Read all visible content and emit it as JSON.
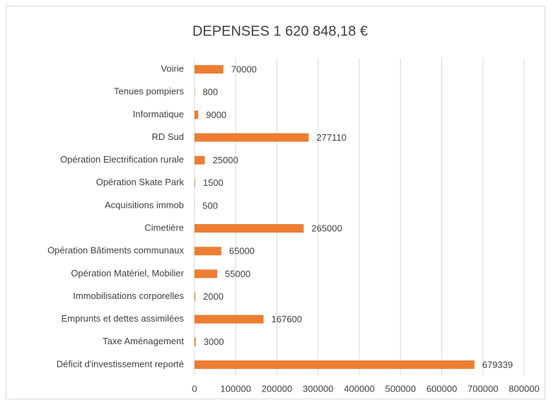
{
  "chart_data": {
    "type": "bar",
    "orientation": "horizontal",
    "title": "DEPENSES 1 620 848,18 €",
    "categories": [
      "Voirie",
      "Tenues pompiers",
      "Informatique",
      "RD Sud",
      "Opération Electrification rurale",
      "Opération Skate Park",
      "Acquisitions immob",
      "Cimetière",
      "Opération Bâtiments communaux",
      "Opération Matériel, Mobilier",
      "Immobilisations corporelles",
      "Emprunts et dettes assimilées",
      "Taxe Aménagement",
      "Déficit d'investissement reporté"
    ],
    "values": [
      70000,
      800,
      9000,
      277110,
      25000,
      1500,
      500,
      265000,
      65000,
      55000,
      2000,
      167600,
      3000,
      679339
    ],
    "color": "#ed7d31",
    "xlim": [
      0,
      800000
    ],
    "xticks": [
      0,
      100000,
      200000,
      300000,
      400000,
      500000,
      600000,
      700000,
      800000
    ],
    "grid": true
  }
}
